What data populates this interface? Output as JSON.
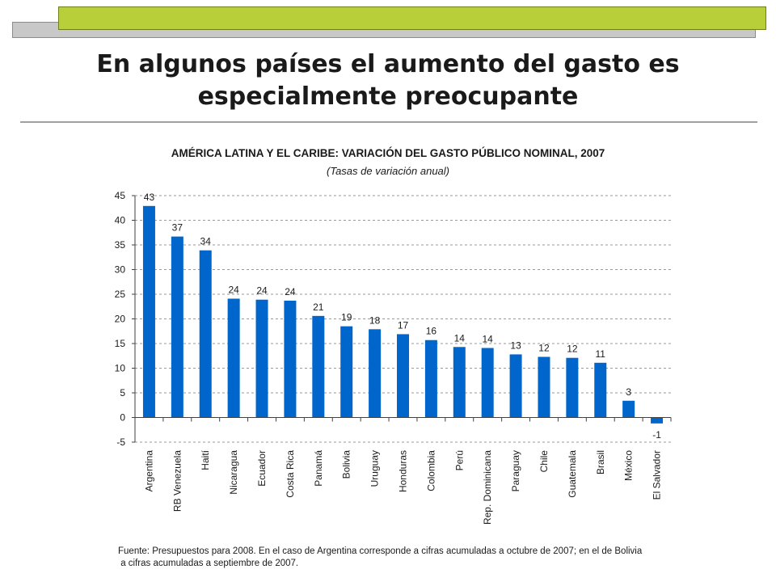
{
  "slide": {
    "title": "En algunos países el aumento del gasto es especialmente preocupante"
  },
  "chart_data": {
    "type": "bar",
    "title": "AMÉRICA LATINA Y EL CARIBE: VARIACIÓN DEL GASTO PÚBLICO NOMINAL, 2007",
    "subtitle": "(Tasas de variación anual)",
    "categories": [
      "Argentina",
      "RB Venezuela",
      "Haití",
      "Nicaragua",
      "Ecuador",
      "Costa Rica",
      "Panamá",
      "Bolivia",
      "Uruguay",
      "Honduras",
      "Colombia",
      "Perú",
      "Rep. Dominicana",
      "Paraguay",
      "Chile",
      "Guatemala",
      "Brasil",
      "México",
      "El Salvador"
    ],
    "values": [
      42.9,
      36.7,
      33.9,
      24.1,
      23.9,
      23.7,
      20.6,
      18.5,
      17.9,
      16.9,
      15.7,
      14.3,
      14.1,
      12.8,
      12.3,
      12.1,
      11.1,
      3.4,
      -1.2
    ],
    "data_labels": [
      "43",
      "37",
      "34",
      "24",
      "24",
      "24",
      "21",
      "19",
      "18",
      "17",
      "16",
      "14",
      "14",
      "13",
      "12",
      "12",
      "11",
      "3",
      "-1"
    ],
    "yticks": [
      "-5",
      "0",
      "5",
      "10",
      "15",
      "20",
      "25",
      "30",
      "35",
      "40",
      "45"
    ],
    "ylim": [
      -5,
      45
    ],
    "ystep": 5,
    "grid": "dashed horizontal",
    "bar_color": "#0066cc"
  },
  "footnote": {
    "line1": "Fuente: Presupuestos para 2008. En el caso de Argentina corresponde a cifras acumuladas a octubre de 2007; en el de Bolivia",
    "line2": " a cifras acumuladas a septiembre de 2007."
  }
}
